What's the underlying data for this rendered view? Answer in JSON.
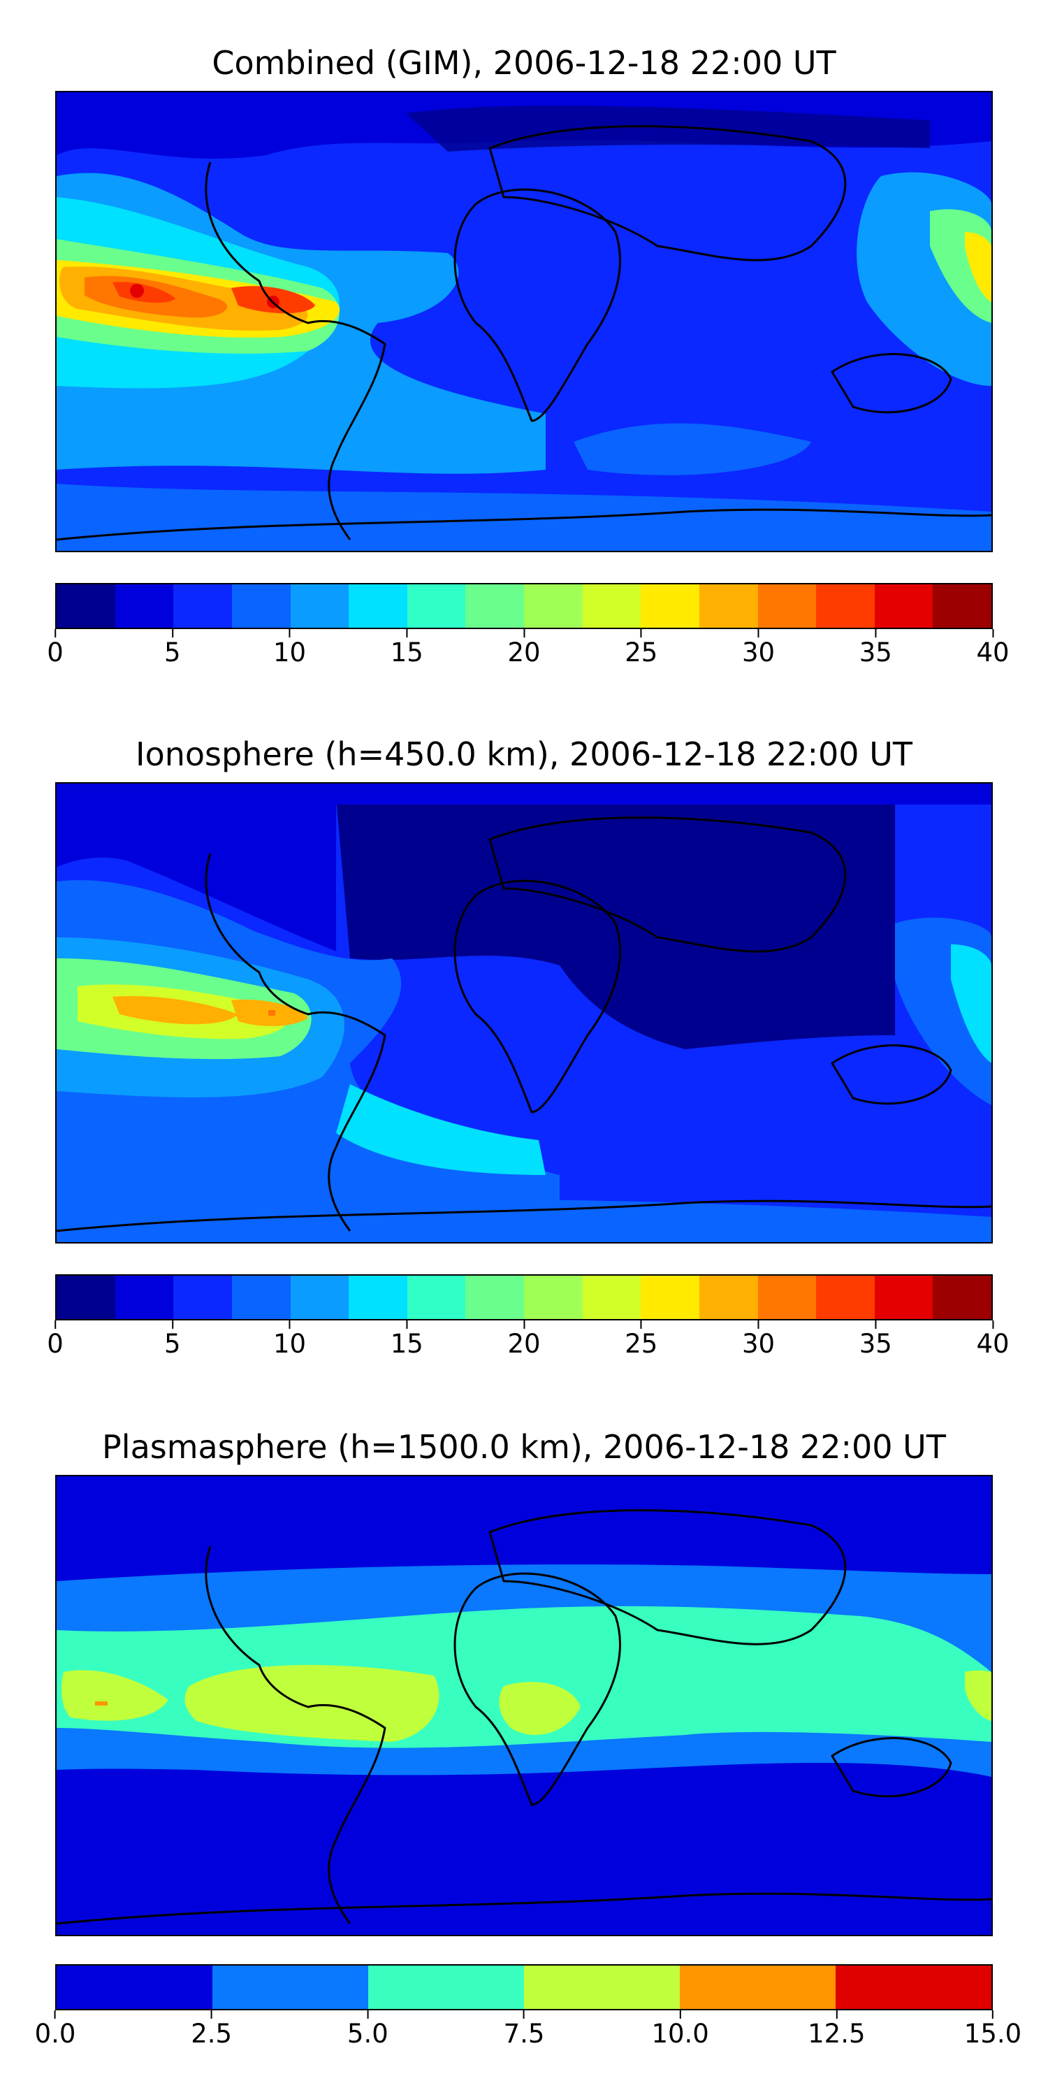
{
  "panels": [
    {
      "title": "Combined (GIM), 2006-12-18 22:00 UT",
      "colorbar": {
        "colors": [
          "#00008e",
          "#0000dc",
          "#0a28ff",
          "#0a64ff",
          "#0a9cff",
          "#00e0ff",
          "#30ffc8",
          "#6aff8c",
          "#a0ff55",
          "#d2ff28",
          "#ffea00",
          "#ffb000",
          "#ff7600",
          "#ff3c00",
          "#e40000",
          "#9c0000"
        ],
        "ticks": [
          "0",
          "5",
          "10",
          "15",
          "20",
          "25",
          "30",
          "35",
          "40"
        ]
      }
    },
    {
      "title": "Ionosphere  (h=450.0 km), 2006-12-18 22:00 UT",
      "colorbar": {
        "colors": [
          "#00008e",
          "#0000dc",
          "#0a28ff",
          "#0a64ff",
          "#0a9cff",
          "#00e0ff",
          "#30ffc8",
          "#6aff8c",
          "#a0ff55",
          "#d2ff28",
          "#ffea00",
          "#ffb000",
          "#ff7600",
          "#ff3c00",
          "#e40000",
          "#9c0000"
        ],
        "ticks": [
          "0",
          "5",
          "10",
          "15",
          "20",
          "25",
          "30",
          "35",
          "40"
        ]
      }
    },
    {
      "title": "Plasmasphere (h=1500.0 km), 2006-12-18 22:00 UT",
      "colorbar": {
        "colors": [
          "#0000dc",
          "#0a78ff",
          "#38ffc0",
          "#c0ff3c",
          "#ff9600",
          "#e00000"
        ],
        "ticks": [
          "0.0",
          "2.5",
          "5.0",
          "7.5",
          "10.0",
          "12.5",
          "15.0"
        ]
      }
    }
  ]
}
